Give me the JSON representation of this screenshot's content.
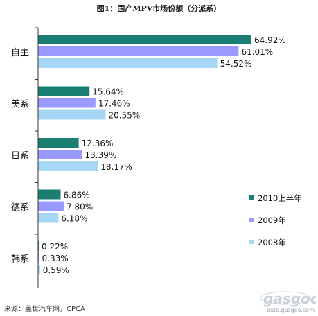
{
  "chart_data": {
    "type": "bar",
    "orientation": "horizontal",
    "title": "图1：国产MPV市场份额（分派系）",
    "categories": [
      "自主",
      "美系",
      "日系",
      "德系",
      "韩系"
    ],
    "series": [
      {
        "name": "2010上半年",
        "color": "#1a7f72",
        "values": [
          64.92,
          15.64,
          12.36,
          6.86,
          0.22
        ]
      },
      {
        "name": "2009年",
        "color": "#9999ff",
        "values": [
          61.01,
          17.46,
          13.39,
          7.8,
          0.33
        ]
      },
      {
        "name": "2008年",
        "color": "#a6d8f5",
        "values": [
          54.52,
          20.55,
          18.17,
          6.18,
          0.59
        ]
      }
    ],
    "value_labels": [
      [
        "64.92%",
        "15.64%",
        "12.36%",
        "6.86%",
        "0.22%"
      ],
      [
        "61.01%",
        "17.46%",
        "13.39%",
        "7.80%",
        "0.33%"
      ],
      [
        "54.52%",
        "20.55%",
        "18.17%",
        "6.18%",
        "0.59%"
      ]
    ],
    "xlim": [
      0,
      70
    ],
    "legend_position": "right",
    "grid": false
  },
  "source": "来源：盖世汽车网，CPCA",
  "watermark": {
    "url": "auto.gasgoo.com"
  }
}
